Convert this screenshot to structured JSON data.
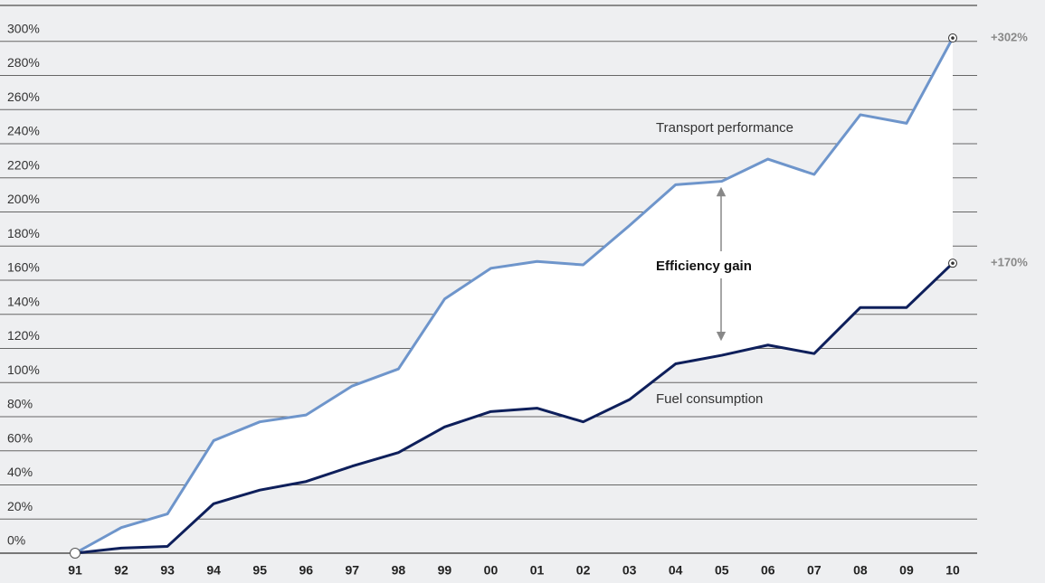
{
  "chart_data": {
    "type": "line",
    "categories": [
      "91",
      "92",
      "93",
      "94",
      "95",
      "96",
      "97",
      "98",
      "99",
      "00",
      "01",
      "02",
      "03",
      "04",
      "05",
      "06",
      "07",
      "08",
      "09",
      "10"
    ],
    "series": [
      {
        "name": "Transport performance",
        "color": "#6e95cb",
        "values": [
          0,
          15,
          23,
          66,
          77,
          81,
          98,
          108,
          149,
          167,
          171,
          169,
          192,
          216,
          218,
          231,
          222,
          257,
          252,
          302
        ]
      },
      {
        "name": "Fuel consumption",
        "color": "#0e1f5b",
        "values": [
          0,
          3,
          4,
          29,
          37,
          42,
          51,
          59,
          74,
          83,
          85,
          77,
          90,
          111,
          116,
          122,
          117,
          144,
          144,
          170
        ]
      }
    ],
    "end_labels": [
      "+302%",
      "+170%"
    ],
    "annotation": "Efficiency gain",
    "ylim": [
      0,
      300
    ],
    "yticks": [
      {
        "value": 0,
        "label": "0%"
      },
      {
        "value": 20,
        "label": "20%"
      },
      {
        "value": 40,
        "label": "40%"
      },
      {
        "value": 60,
        "label": "60%"
      },
      {
        "value": 80,
        "label": "80%"
      },
      {
        "value": 100,
        "label": "100%"
      },
      {
        "value": 120,
        "label": "120%"
      },
      {
        "value": 140,
        "label": "140%"
      },
      {
        "value": 160,
        "label": "160%"
      },
      {
        "value": 180,
        "label": "180%"
      },
      {
        "value": 200,
        "label": "200%"
      },
      {
        "value": 220,
        "label": "220%"
      },
      {
        "value": 240,
        "label": "240%"
      },
      {
        "value": 260,
        "label": "260%"
      },
      {
        "value": 280,
        "label": "280%"
      },
      {
        "value": 300,
        "label": "300%"
      }
    ],
    "grid": true
  }
}
